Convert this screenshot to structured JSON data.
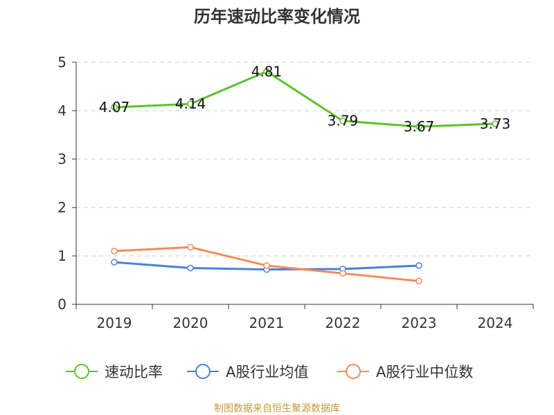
{
  "chart_data": {
    "type": "line",
    "title": "历年速动比率变化情况",
    "categories": [
      "2019",
      "2020",
      "2021",
      "2022",
      "2023",
      "2024"
    ],
    "ylim": [
      0,
      5
    ],
    "yticks": [
      "0",
      "1",
      "2",
      "3",
      "4",
      "5"
    ],
    "grid": true,
    "legend_position": "bottom",
    "series": [
      {
        "name": "速动比率",
        "color": "#5bc22a",
        "values": [
          4.07,
          4.14,
          4.81,
          3.79,
          3.67,
          3.73
        ],
        "labels": [
          "4.07",
          "4.14",
          "4.81",
          "3.79",
          "3.67",
          "3.73"
        ]
      },
      {
        "name": "A股行业均值",
        "color": "#4a7fdc",
        "values": [
          0.87,
          0.75,
          0.72,
          0.73,
          0.8,
          null
        ]
      },
      {
        "name": "A股行业中位数",
        "color": "#f28c5b",
        "values": [
          1.1,
          1.18,
          0.8,
          0.64,
          0.48,
          null
        ]
      }
    ]
  },
  "footer": {
    "source": "制图数据来自恒生聚源数据库"
  }
}
